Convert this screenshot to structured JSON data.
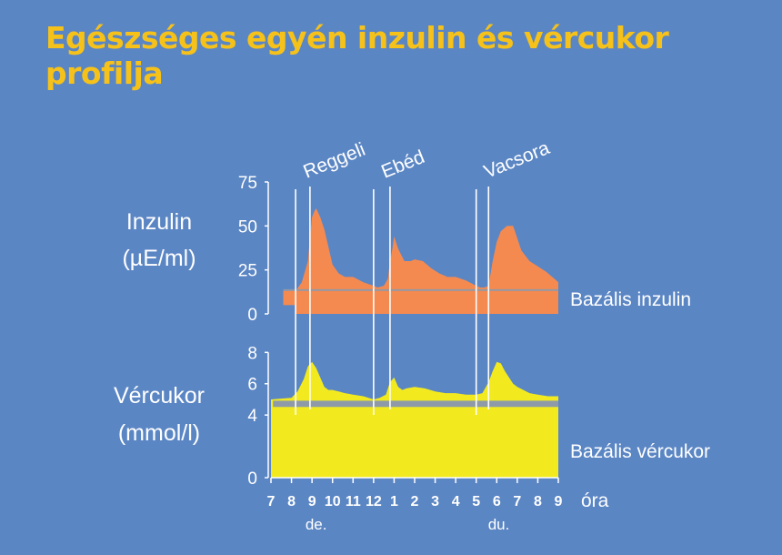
{
  "title": "Egészséges egyén inzulin és vércukor profilja",
  "colors": {
    "background": "#5b86c4",
    "title": "#f6c21a",
    "insulin": "#f58a50",
    "glucose": "#f2ea1f",
    "basal_bar": "#8f9aa8",
    "text": "#ffffff",
    "axis": "#ffffff"
  },
  "chart_data": [
    {
      "type": "area",
      "ylabel_lines": [
        "Inzulin",
        "(µE/ml)"
      ],
      "yticks": [
        0,
        25,
        50,
        75
      ],
      "ylim": [
        0,
        75
      ],
      "xlim": [
        7,
        21
      ],
      "series": [
        {
          "name": "Bazális inzulin",
          "type": "band",
          "range": [
            5,
            13
          ]
        },
        {
          "type": "area",
          "x": [
            8.2,
            8.5,
            8.8,
            9.0,
            9.1,
            9.2,
            9.4,
            9.6,
            9.8,
            10.0,
            10.3,
            10.6,
            11.0,
            11.5,
            12.0,
            12.2,
            12.5,
            12.7,
            12.8,
            12.9,
            13.0,
            13.2,
            13.5,
            13.8,
            14.0,
            14.4,
            14.8,
            15.2,
            15.6,
            16.0,
            16.5,
            17.0,
            17.2,
            17.4,
            17.6,
            17.8,
            18.0,
            18.2,
            18.5,
            18.8,
            19.2,
            19.6,
            20.0,
            20.4,
            20.8,
            21.0
          ],
          "y": [
            13,
            18,
            30,
            55,
            58,
            60,
            55,
            48,
            38,
            28,
            23,
            21,
            21,
            18,
            16,
            15,
            16,
            20,
            30,
            36,
            44,
            37,
            30,
            30,
            31,
            30,
            26,
            23,
            21,
            21,
            19,
            16,
            15,
            15,
            16,
            30,
            41,
            47,
            50,
            50,
            36,
            30,
            27,
            24,
            20,
            18
          ]
        }
      ],
      "annotations": [
        {
          "text": "Reggeli",
          "x": 8.2
        },
        {
          "text": "Ebéd",
          "x": 12.0
        },
        {
          "text": "Vacsora",
          "x": 17.0
        }
      ],
      "right_label": "Bazális inzulin"
    },
    {
      "type": "area",
      "ylabel_lines": [
        "Vércukor",
        "(mmol/l)"
      ],
      "yticks": [
        0,
        4,
        6,
        8
      ],
      "ylim": [
        0,
        8.6
      ],
      "xlim": [
        7,
        21
      ],
      "series": [
        {
          "name": "Bazális vércukor",
          "type": "band",
          "range": [
            0,
            4.8
          ]
        },
        {
          "type": "area",
          "x": [
            7.0,
            7.5,
            8.0,
            8.3,
            8.6,
            8.8,
            9.0,
            9.2,
            9.4,
            9.6,
            9.8,
            10.0,
            10.3,
            10.6,
            11.0,
            11.5,
            12.0,
            12.3,
            12.6,
            12.8,
            13.0,
            13.2,
            13.4,
            13.6,
            14.0,
            14.5,
            15.0,
            15.5,
            16.0,
            16.5,
            17.0,
            17.3,
            17.6,
            17.8,
            18.0,
            18.2,
            18.4,
            18.6,
            18.8,
            19.0,
            19.3,
            19.6,
            20.0,
            20.5,
            21.0
          ],
          "y": [
            5.0,
            5.05,
            5.1,
            5.5,
            6.3,
            7.1,
            7.4,
            7.0,
            6.4,
            5.8,
            5.6,
            5.6,
            5.5,
            5.4,
            5.3,
            5.2,
            5.0,
            5.1,
            5.3,
            6.1,
            6.4,
            5.8,
            5.6,
            5.7,
            5.8,
            5.7,
            5.5,
            5.4,
            5.4,
            5.3,
            5.3,
            5.4,
            6.1,
            6.8,
            7.4,
            7.3,
            6.8,
            6.4,
            6.0,
            5.8,
            5.6,
            5.4,
            5.3,
            5.2,
            5.2
          ]
        }
      ],
      "right_label": "Bazális vércukor"
    }
  ],
  "meal_lines": {
    "pre": [
      8.2,
      12.0,
      17.0
    ],
    "post": [
      8.9,
      12.8,
      17.6
    ]
  },
  "xticks": [
    "7",
    "8",
    "9",
    "10",
    "11",
    "12",
    "1",
    "2",
    "3",
    "4",
    "5",
    "6",
    "7",
    "8",
    "9"
  ],
  "xunit": "óra",
  "xsub": [
    {
      "text": "de.",
      "x": 9.2
    },
    {
      "text": "du.",
      "x": 18.1
    }
  ]
}
